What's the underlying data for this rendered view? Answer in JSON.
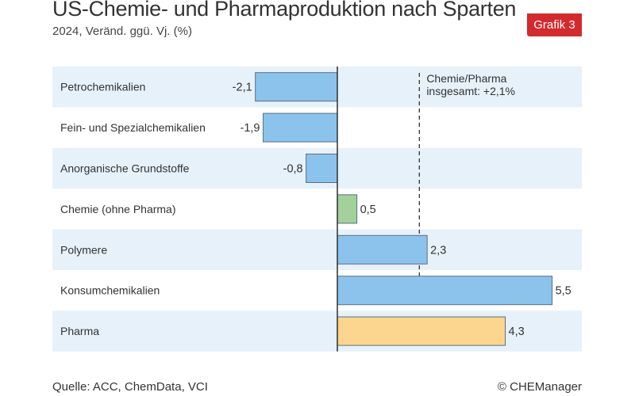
{
  "header": {
    "title": "US-Chemie- und Pharmaproduktion nach Sparten",
    "subtitle": "2024, Veränd. ggü. Vj. (%)",
    "badge": "Grafik 3"
  },
  "footer": {
    "source": "Quelle: ACC, ChemData, VCI",
    "copyright": "© CHEManager"
  },
  "colors": {
    "negative_bar": "#8cc3ec",
    "positive_bar": "#8cc3ec",
    "chemie_bar": "#a2d19a",
    "pharma_bar": "#fcd58e",
    "bar_stroke": "#5a6f82",
    "band": "#e6f1fa",
    "badge": "#d32a2f"
  },
  "chart_data": {
    "type": "bar",
    "orientation": "horizontal",
    "categories": [
      "Petrochemikalien",
      "Fein- und Spezialchemikalien",
      "Anorganische Grundstoffe",
      "Chemie (ohne Pharma)",
      "Polymere",
      "Konsumchemikalien",
      "Pharma"
    ],
    "values": [
      -2.1,
      -1.9,
      -0.8,
      0.5,
      2.3,
      5.5,
      4.3
    ],
    "value_labels": [
      "-2,1",
      "-1,9",
      "-0,8",
      "0,5",
      "2,3",
      "5,5",
      "4,3"
    ],
    "bar_colors": [
      "#8cc3ec",
      "#8cc3ec",
      "#8cc3ec",
      "#a2d19a",
      "#8cc3ec",
      "#8cc3ec",
      "#fcd58e"
    ],
    "xlim": [
      -5.5,
      6
    ],
    "reference_line": {
      "value": 2.1,
      "label_lines": [
        "Chemie/Pharma",
        "insgesamt: +2,1%"
      ]
    },
    "grid": false,
    "legend": "none"
  }
}
